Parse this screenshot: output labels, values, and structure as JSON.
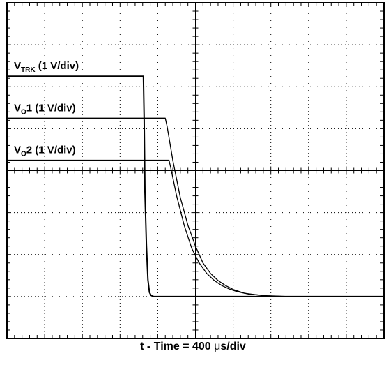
{
  "chart_data": {
    "type": "line",
    "title": "",
    "xlabel_parts": {
      "prefix": "t - Time = 400 ",
      "mu": "μ",
      "suffix": "s/div"
    },
    "grid": true,
    "divisions": {
      "x": 10,
      "y": 8
    },
    "units": {
      "x": "div",
      "y": "div"
    },
    "xlim": [
      0,
      10
    ],
    "ylim": [
      -4,
      4
    ],
    "series": [
      {
        "label_main": "V",
        "label_sub": "TRK",
        "label_suffix": " (1 V/div)",
        "stroke_width": 2.0,
        "x": [
          0,
          3.62,
          3.64,
          3.66,
          3.7,
          3.74,
          3.78,
          3.82,
          3.86,
          3.9,
          10
        ],
        "y": [
          2.25,
          2.25,
          1.2,
          -0.5,
          -1.8,
          -2.6,
          -2.9,
          -2.97,
          -2.99,
          -3.0,
          -3.0
        ]
      },
      {
        "label_main": "V",
        "label_sub": "O",
        "label_suffix": "1 (1 V/div)",
        "stroke_width": 1.3,
        "x": [
          0,
          4.2,
          4.25,
          4.4,
          4.6,
          4.8,
          5.0,
          5.2,
          5.4,
          5.6,
          5.8,
          6.0,
          6.3,
          6.8,
          7.4,
          10
        ],
        "y": [
          1.25,
          1.25,
          1.05,
          0.25,
          -0.65,
          -1.3,
          -1.8,
          -2.2,
          -2.45,
          -2.62,
          -2.74,
          -2.83,
          -2.92,
          -2.98,
          -3.0,
          -3.0
        ]
      },
      {
        "label_main": "V",
        "label_sub": "O",
        "label_suffix": "2 (1 V/div)",
        "stroke_width": 1.3,
        "x": [
          0,
          4.3,
          4.35,
          4.5,
          4.7,
          4.9,
          5.1,
          5.3,
          5.5,
          5.7,
          5.9,
          6.1,
          6.4,
          6.9,
          7.5,
          10
        ],
        "y": [
          0.25,
          0.25,
          0.05,
          -0.6,
          -1.3,
          -1.85,
          -2.2,
          -2.45,
          -2.62,
          -2.74,
          -2.82,
          -2.88,
          -2.94,
          -2.98,
          -3.0,
          -3.0
        ]
      }
    ]
  }
}
